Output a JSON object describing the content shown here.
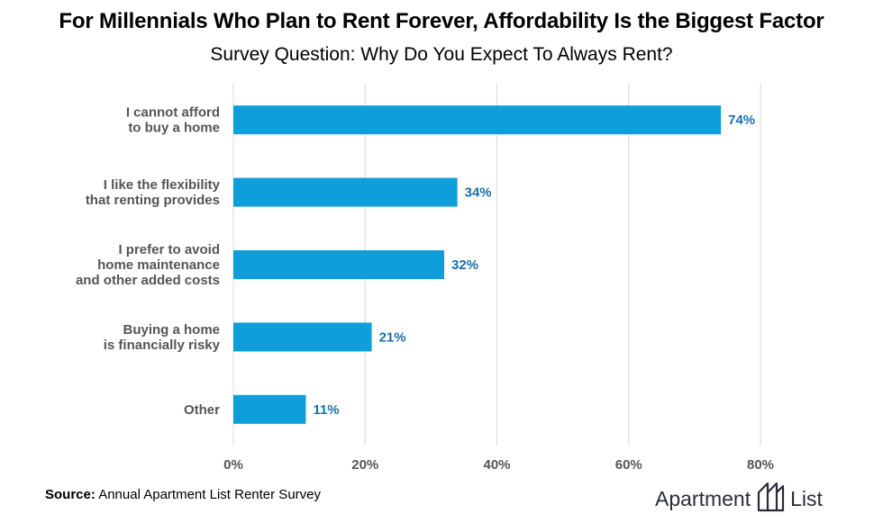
{
  "header": {
    "title": "For Millennials Who Plan to Rent Forever, Affordability Is the Biggest Factor",
    "subtitle": "Survey Question: Why Do You Expect To Always Rent?"
  },
  "chart_data": {
    "type": "bar",
    "orientation": "horizontal",
    "categories": [
      [
        "I cannot afford",
        "to buy a home"
      ],
      [
        "I like the flexibility",
        "that renting provides"
      ],
      [
        "I prefer to avoid",
        "home maintenance",
        "and other added costs"
      ],
      [
        "Buying a home",
        "is financially risky"
      ],
      [
        "Other"
      ]
    ],
    "values": [
      74,
      34,
      32,
      21,
      11
    ],
    "value_labels": [
      "74%",
      "34%",
      "32%",
      "21%",
      "11%"
    ],
    "xlim": [
      0,
      80
    ],
    "x_ticks": [
      0,
      20,
      40,
      60,
      80
    ],
    "x_tick_labels": [
      "0%",
      "20%",
      "40%",
      "60%",
      "80%"
    ],
    "grid": true,
    "bar_color": "#0e9fdb",
    "label_color": "#1a6fa8"
  },
  "footer": {
    "source_label": "Source:",
    "source_text": " Annual Apartment List Renter Survey",
    "logo_word1": "Apartment",
    "logo_word2": "List",
    "logo_icon": "apartment-list-logo-icon"
  }
}
